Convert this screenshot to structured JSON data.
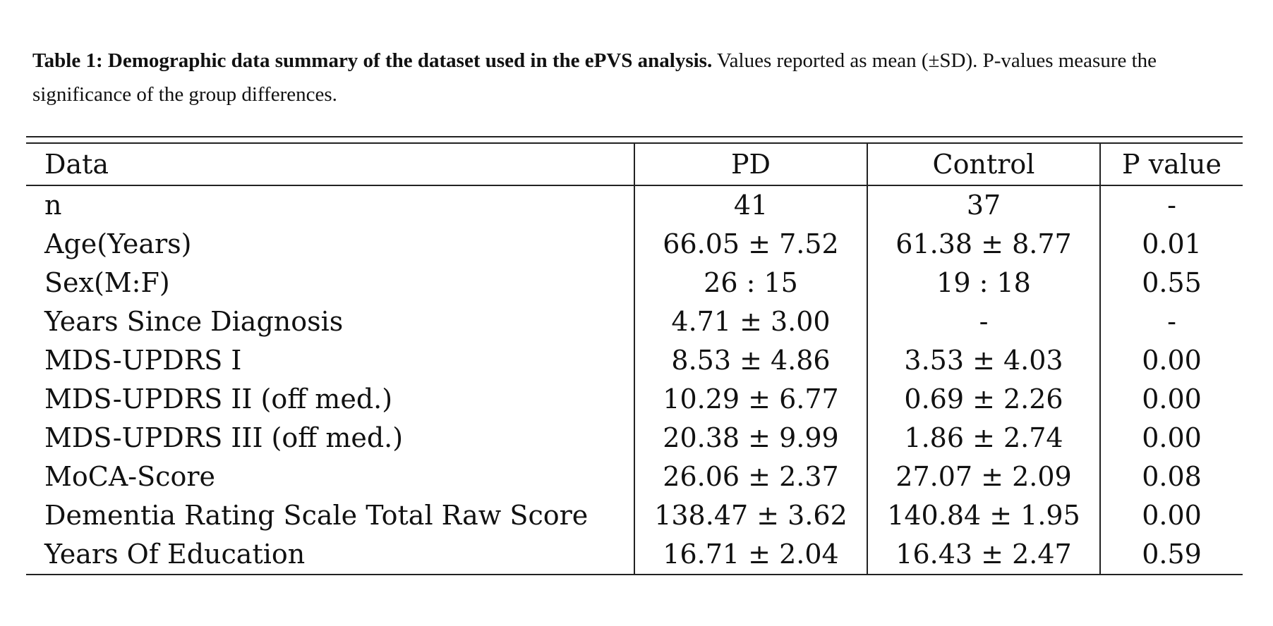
{
  "caption": {
    "bold": "Table 1: Demographic data summary of the dataset used in the ePVS analysis.",
    "text": " Values reported as mean (±SD). P-values measure the significance of the group differences."
  },
  "table": {
    "headers": [
      "Data",
      "PD",
      "Control",
      "P value"
    ],
    "rows": [
      [
        "n",
        "41",
        "37",
        "-"
      ],
      [
        "Age(Years)",
        "66.05 ± 7.52",
        "61.38 ± 8.77",
        "0.01"
      ],
      [
        "Sex(M:F)",
        "26 : 15",
        "19 : 18",
        "0.55"
      ],
      [
        "Years Since Diagnosis",
        "4.71 ± 3.00",
        "-",
        "-"
      ],
      [
        "MDS-UPDRS I",
        "8.53 ± 4.86",
        "3.53 ± 4.03",
        "0.00"
      ],
      [
        "MDS-UPDRS II (off med.)",
        "10.29 ± 6.77",
        "0.69 ± 2.26",
        "0.00"
      ],
      [
        "MDS-UPDRS III (off med.)",
        "20.38 ± 9.99",
        "1.86 ± 2.74",
        "0.00"
      ],
      [
        "MoCA-Score",
        "26.06 ± 2.37",
        "27.07 ± 2.09",
        "0.08"
      ],
      [
        "Dementia Rating Scale Total Raw Score",
        "138.47 ± 3.62",
        "140.84 ± 1.95",
        "0.00"
      ],
      [
        "Years Of Education",
        "16.71 ± 2.04",
        "16.43 ± 2.47",
        "0.59"
      ]
    ]
  }
}
